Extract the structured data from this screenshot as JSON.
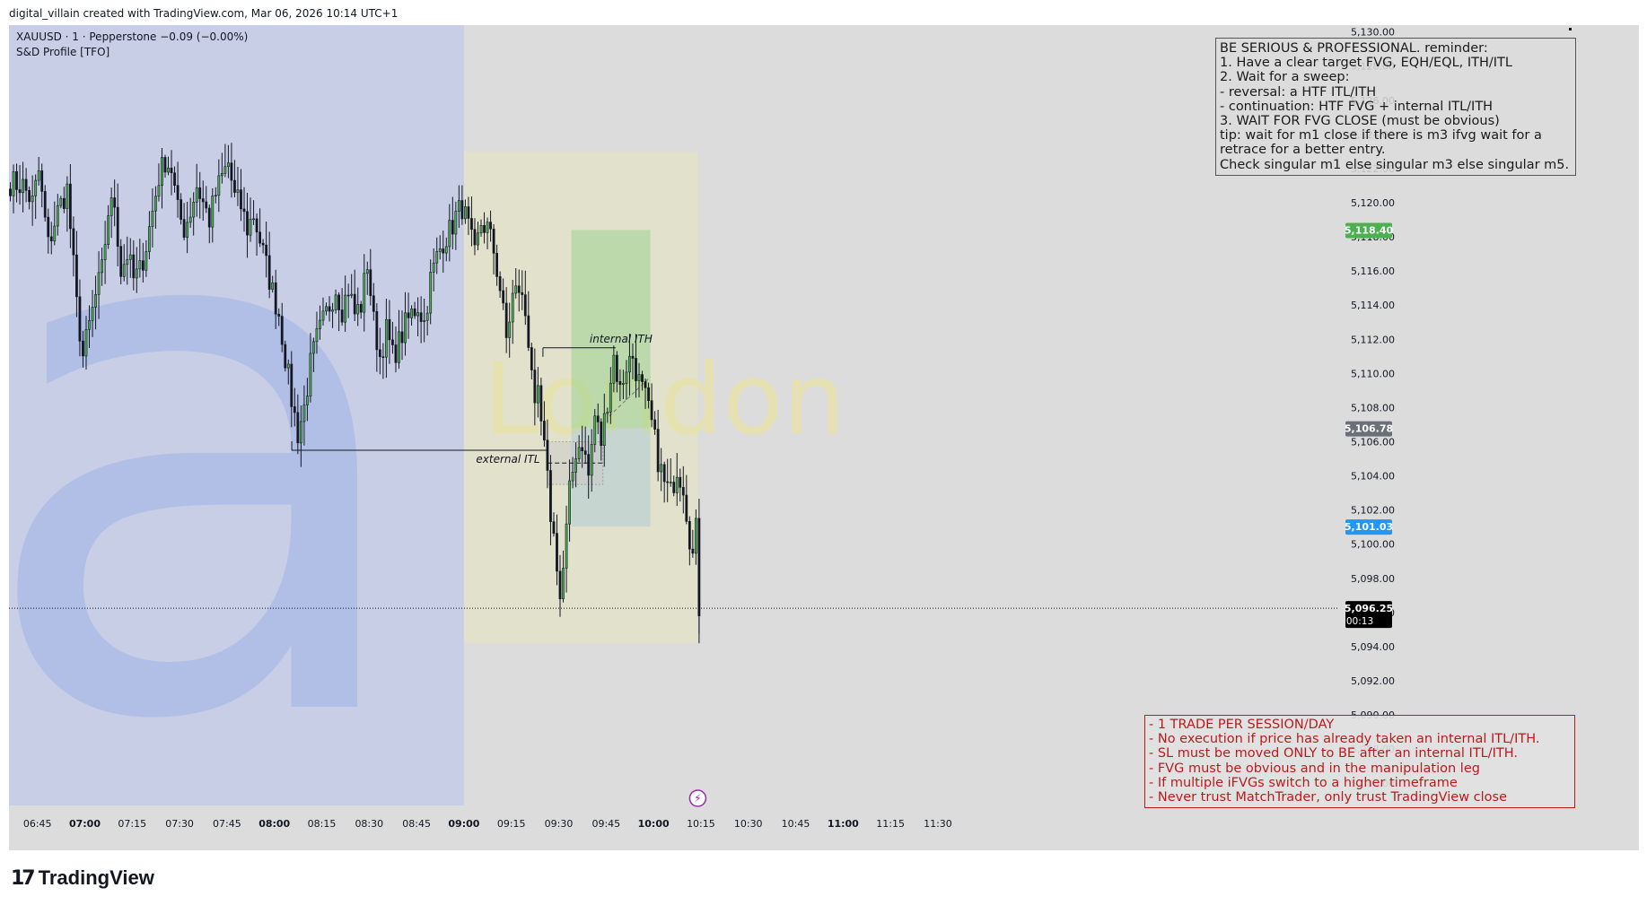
{
  "header": {
    "credit": "digital_villain created with TradingView.com, Mar 06, 2026 10:14 UTC+1"
  },
  "legend": {
    "symbol": "XAUUSD · 1 · Pepperstone  −0.09 (−0.00%)",
    "indicator": "S&D Profile [TFO]"
  },
  "watermark": {
    "letter": "a",
    "session": "London"
  },
  "reminder": {
    "lines": [
      "BE SERIOUS & PROFESSIONAL. reminder:",
      "1. Have a clear target FVG, EQH/EQL, ITH/ITL",
      "2. Wait for a sweep:",
      "- reversal: a HTF ITL/ITH",
      "- continuation: HTF FVG + internal ITL/ITH",
      "3. WAIT FOR FVG CLOSE (must be obvious)",
      "tip: wait for m1 close if there is m3 ifvg wait for a",
      "retrace for a better entry.",
      "Check singular m1 else singular m3 else singular m5."
    ]
  },
  "rules": {
    "lines": [
      "- 1 TRADE PER SESSION/DAY",
      "- No execution if price has already taken an internal ITL/ITH.",
      "- SL must be moved ONLY to BE after an internal ITL/ITH.",
      "- FVG must be obvious and in the manipulation leg",
      "- If multiple iFVGs switch to a higher timeframe",
      "- Never trust MatchTrader, only trust TradingView close"
    ]
  },
  "annotations": {
    "internal_ith": "internal ITH",
    "external_itl": "external ITL"
  },
  "price_tags": {
    "target": {
      "label": "5,118.40",
      "value": 5118.4,
      "color": "#4caf50"
    },
    "mid": {
      "label": "5,106.78",
      "value": 5106.78,
      "color": "#6b6f7a"
    },
    "stop": {
      "label": "5,101.03",
      "value": 5101.03,
      "color": "#2196f3"
    },
    "last": {
      "label": "5,096.25",
      "countdown": "00:13",
      "value": 5096.25,
      "color": "#000000"
    }
  },
  "footer": {
    "mark": "17",
    "brand": "TradingView"
  },
  "colors": {
    "up": "#4caf50",
    "down": "#131722",
    "asia_bg": "#c8cee6",
    "london_bg": "#e2e2cc",
    "chart_bg": "#dcdcdc"
  },
  "chart_data": {
    "type": "candlestick",
    "symbol": "XAUUSD",
    "timeframe": "1",
    "y_axis": {
      "range": [
        5084.7,
        5130.4
      ],
      "ticks": [
        5086,
        5088,
        5090,
        5092,
        5094,
        5096,
        5098,
        5100,
        5102,
        5104,
        5106,
        5108,
        5110,
        5112,
        5114,
        5116,
        5118,
        5120,
        5122,
        5124,
        5126,
        5128,
        5130
      ],
      "tick_labels": [
        "5,086.00",
        "5,088.00",
        "5,090.00",
        "5,092.00",
        "5,094.00",
        "5,096.00",
        "5,098.00",
        "5,100.00",
        "5,102.00",
        "5,104.00",
        "5,106.00",
        "5,108.00",
        "5,110.00",
        "5,112.00",
        "5,114.00",
        "5,116.00",
        "5,118.00",
        "5,120.00",
        "5,122.00",
        "5,124.00",
        "5,126.00",
        "5,128.00",
        "5,130.00"
      ]
    },
    "x_axis": {
      "range_minutes": [
        396,
        817
      ],
      "ticks": [
        {
          "t": 405,
          "label": "06:45",
          "bold": false
        },
        {
          "t": 420,
          "label": "07:00",
          "bold": true
        },
        {
          "t": 435,
          "label": "07:15",
          "bold": false
        },
        {
          "t": 450,
          "label": "07:30",
          "bold": false
        },
        {
          "t": 465,
          "label": "07:45",
          "bold": false
        },
        {
          "t": 480,
          "label": "08:00",
          "bold": true
        },
        {
          "t": 495,
          "label": "08:15",
          "bold": false
        },
        {
          "t": 510,
          "label": "08:30",
          "bold": false
        },
        {
          "t": 525,
          "label": "08:45",
          "bold": false
        },
        {
          "t": 540,
          "label": "09:00",
          "bold": true
        },
        {
          "t": 555,
          "label": "09:15",
          "bold": false
        },
        {
          "t": 570,
          "label": "09:30",
          "bold": false
        },
        {
          "t": 585,
          "label": "09:45",
          "bold": false
        },
        {
          "t": 600,
          "label": "10:00",
          "bold": true
        },
        {
          "t": 615,
          "label": "10:15",
          "bold": false
        },
        {
          "t": 630,
          "label": "10:30",
          "bold": false
        },
        {
          "t": 645,
          "label": "10:45",
          "bold": false
        },
        {
          "t": 660,
          "label": "11:00",
          "bold": true
        },
        {
          "t": 675,
          "label": "11:15",
          "bold": false
        },
        {
          "t": 690,
          "label": "11:30",
          "bold": false
        }
      ]
    },
    "sessions": [
      {
        "label": "Asia",
        "start_min": 396,
        "end_min": 540
      },
      {
        "label": "London",
        "start_min": 540,
        "end_min": 614,
        "high": 5123,
        "low": 5094.2
      }
    ],
    "levels": {
      "external_itl": {
        "price": 5105.5,
        "from_min": 485.5,
        "to_min": 566
      },
      "internal_ith": {
        "price": 5111.5,
        "from_min": 565,
        "to_min": 588
      },
      "last_price": 5096.25
    },
    "position_box": {
      "start_min": 574,
      "end_min": 599,
      "target": 5118.4,
      "entry": 5106.78,
      "stop": 5101.03
    },
    "fvg_box": {
      "start_min": 566.5,
      "end_min": 584,
      "top": 5106,
      "bottom": 5103.5
    },
    "anchor_points": [
      [
        396,
        5121.2
      ],
      [
        400,
        5121.0
      ],
      [
        403,
        5120.0
      ],
      [
        405,
        5121.8
      ],
      [
        408,
        5117.5
      ],
      [
        411,
        5119.5
      ],
      [
        414,
        5120.8
      ],
      [
        417,
        5114.0
      ],
      [
        419,
        5111.0
      ],
      [
        421,
        5112.8
      ],
      [
        423,
        5114.5
      ],
      [
        425,
        5116.0
      ],
      [
        427,
        5119.5
      ],
      [
        429,
        5120.0
      ],
      [
        431,
        5116.0
      ],
      [
        433,
        5117.0
      ],
      [
        435,
        5115.5
      ],
      [
        437,
        5116.0
      ],
      [
        439,
        5117.5
      ],
      [
        441,
        5119.5
      ],
      [
        443,
        5121.5
      ],
      [
        445,
        5122.5
      ],
      [
        447,
        5122.0
      ],
      [
        449,
        5119.5
      ],
      [
        451,
        5118.5
      ],
      [
        453,
        5119.5
      ],
      [
        455,
        5121.0
      ],
      [
        457,
        5120.0
      ],
      [
        459,
        5119.0
      ],
      [
        461,
        5120.5
      ],
      [
        463,
        5121.5
      ],
      [
        465,
        5122.3
      ],
      [
        467,
        5120.3
      ],
      [
        469,
        5119.8
      ],
      [
        471,
        5118.5
      ],
      [
        473,
        5119.3
      ],
      [
        475,
        5117.8
      ],
      [
        477,
        5116.3
      ],
      [
        479,
        5114.8
      ],
      [
        481,
        5113.5
      ],
      [
        483,
        5111.0
      ],
      [
        485,
        5108.5
      ],
      [
        487,
        5106.5
      ],
      [
        489,
        5108.0
      ],
      [
        491,
        5110.5
      ],
      [
        493,
        5112.0
      ],
      [
        495,
        5113.0
      ],
      [
        497,
        5114.0
      ],
      [
        499,
        5115.0
      ],
      [
        501,
        5113.8
      ],
      [
        503,
        5115.0
      ],
      [
        505,
        5113.5
      ],
      [
        507,
        5114.0
      ],
      [
        509,
        5116.5
      ],
      [
        511,
        5113.0
      ],
      [
        513,
        5111.0
      ],
      [
        515,
        5112.5
      ],
      [
        517,
        5111.0
      ],
      [
        519,
        5111.8
      ],
      [
        521,
        5112.8
      ],
      [
        523,
        5113.5
      ],
      [
        525,
        5114.0
      ],
      [
        527,
        5113.0
      ],
      [
        529,
        5115.5
      ],
      [
        531,
        5116.8
      ],
      [
        533,
        5117.8
      ],
      [
        535,
        5118.3
      ],
      [
        537,
        5119.2
      ],
      [
        539,
        5119.8
      ],
      [
        541,
        5118.5
      ],
      [
        543,
        5116.8
      ],
      [
        545,
        5118.8
      ],
      [
        547,
        5118.5
      ],
      [
        549,
        5117.2
      ],
      [
        551,
        5115.0
      ],
      [
        553,
        5112.0
      ],
      [
        555,
        5114.5
      ],
      [
        557,
        5115.0
      ],
      [
        559,
        5113.5
      ],
      [
        561,
        5110.5
      ],
      [
        562,
        5107.5
      ],
      [
        563,
        5108.5
      ],
      [
        565,
        5105.5
      ],
      [
        567,
        5101.8
      ],
      [
        569,
        5099.0
      ],
      [
        570,
        5096.8
      ],
      [
        571,
        5098.5
      ],
      [
        573,
        5103.0
      ],
      [
        575,
        5105.5
      ],
      [
        577,
        5106.0
      ],
      [
        579,
        5104.0
      ],
      [
        581,
        5107.5
      ],
      [
        583,
        5106.0
      ],
      [
        585,
        5108.5
      ],
      [
        587,
        5111.0
      ],
      [
        589,
        5109.0
      ],
      [
        591,
        5110.5
      ],
      [
        593,
        5111.0
      ],
      [
        595,
        5109.5
      ],
      [
        597,
        5108.5
      ],
      [
        599,
        5107.0
      ],
      [
        601,
        5105.0
      ],
      [
        603,
        5103.5
      ],
      [
        605,
        5103.0
      ],
      [
        607,
        5104.5
      ],
      [
        609,
        5103.5
      ],
      [
        611,
        5100.5
      ],
      [
        612,
        5099.3
      ],
      [
        613,
        5100.8
      ],
      [
        614,
        5095.8
      ]
    ]
  }
}
